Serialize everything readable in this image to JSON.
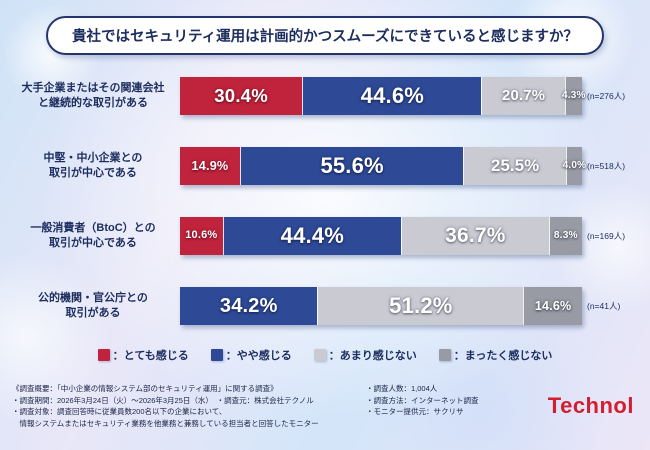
{
  "title": "貴社ではセキュリティ運用は計画的かつスムーズにできていると感じますか？",
  "chart_data": {
    "type": "bar",
    "stacked": true,
    "orientation": "horizontal",
    "unit": "%",
    "xlim": [
      0,
      100
    ],
    "legend_position": "bottom",
    "legend_separator": "：",
    "categories": [
      {
        "lines": [
          "大手企業またはその関連会社",
          "と継続的な取引がある"
        ],
        "n": "(n=276人)"
      },
      {
        "lines": [
          "中堅・中小企業との",
          "取引が中心である"
        ],
        "n": "(n=518人)"
      },
      {
        "lines": [
          "一般消費者（BtoC）との",
          "取引が中心である"
        ],
        "n": "(n=169人)"
      },
      {
        "lines": [
          "公的機関・官公庁との",
          "取引がある"
        ],
        "n": "(n=41人)"
      }
    ],
    "series": [
      {
        "name": "とても感じる",
        "color": "#c0233c",
        "values": [
          30.4,
          14.9,
          10.6,
          0
        ]
      },
      {
        "name": "やや感じる",
        "color": "#2e4a96",
        "values": [
          44.6,
          55.6,
          44.4,
          34.2
        ]
      },
      {
        "name": "あまり感じない",
        "color": "#c9cad2",
        "values": [
          20.7,
          25.5,
          36.7,
          51.2
        ]
      },
      {
        "name": "まったく感じない",
        "color": "#989aa4",
        "values": [
          4.3,
          4.0,
          8.3,
          14.6
        ]
      }
    ]
  },
  "footer": {
    "overview": "《調査概要：「中小企業の情報システム部のセキュリティ運用」に関する調査》",
    "left_lines": [
      "・調査期間：2026年3月24日（火）～2026年3月25日（水）　・調査元：株式会社テクノル",
      "・調査対象：調査回答時に従業員数200名以下の企業において、",
      "　情報システムまたはセキュリティ業務を他業務と兼務している担当者と回答したモニター"
    ],
    "right_lines": [
      "・調査人数：1,004人",
      "・調査方法：インターネット調査",
      "・モニター提供元：サクリサ"
    ],
    "logo": "Technol",
    "logo_color": "#d21f2f"
  },
  "colors": {
    "title_text": "#1c2d5e",
    "title_border": "#23356b"
  }
}
